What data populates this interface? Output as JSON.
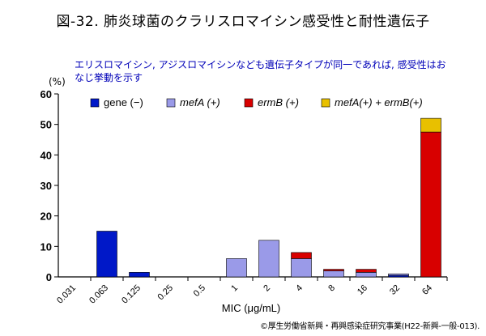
{
  "title": "図-32. 肺炎球菌のクラリスロマイシン感受性と耐性遺伝子",
  "subtitle": "エリスロマイシン, アジスロマイシンなども遺伝子タイプが同一であれば, 感受性はおなじ挙動を示す",
  "source": "©厚生労働省新興・再興感染症研究事業(H22-新興-一般-013).",
  "chart_data": {
    "type": "bar",
    "stacked": true,
    "categories": [
      "0.031",
      "0.063",
      "0.125",
      "0.25",
      "0.5",
      "1",
      "2",
      "4",
      "8",
      "16",
      "32",
      "64"
    ],
    "series": [
      {
        "name": "gene (−)",
        "color": "#0018c8",
        "values": [
          0,
          15,
          1.5,
          0,
          0,
          0,
          0,
          0,
          0,
          0,
          0.5,
          0
        ]
      },
      {
        "name": "mefA (+)",
        "color": "#9a9ae8",
        "values": [
          0,
          0,
          0,
          0,
          0,
          6,
          12,
          6,
          2,
          1.5,
          0.5,
          0
        ]
      },
      {
        "name": "ermB (+)",
        "color": "#d80000",
        "values": [
          0,
          0,
          0,
          0,
          0,
          0,
          0,
          2,
          0.5,
          1,
          0,
          47.5
        ]
      },
      {
        "name": "mefA(+) + ermB(+)",
        "color": "#e8c000",
        "values": [
          0,
          0,
          0,
          0,
          0,
          0,
          0,
          0,
          0,
          0,
          0,
          4.5
        ]
      }
    ],
    "xlabel": "MIC (μg/mL)",
    "ylabel": "(%)",
    "ylim": [
      0,
      60
    ],
    "yticks": [
      "0",
      "10",
      "20",
      "30",
      "40",
      "50",
      "60"
    ],
    "grid": false,
    "legend": "top"
  }
}
